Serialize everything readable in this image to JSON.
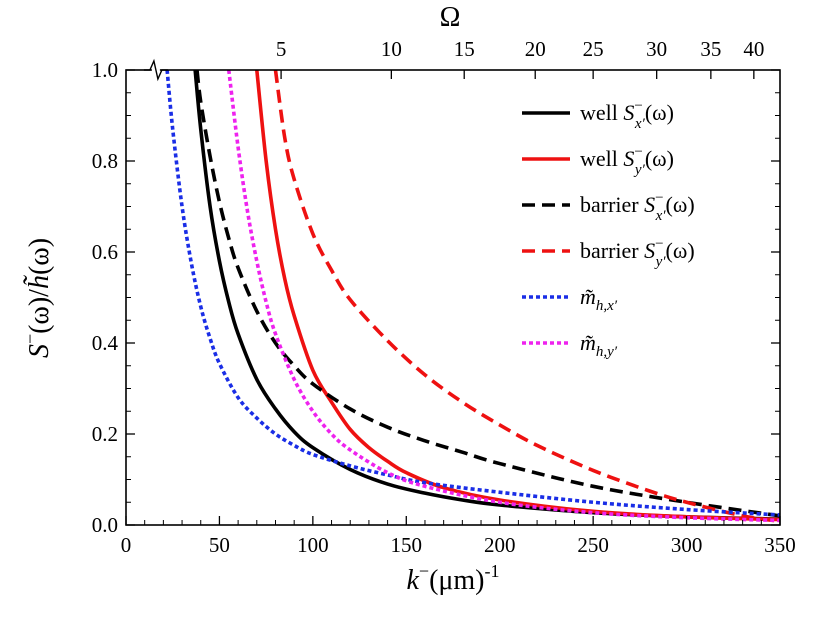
{
  "chart_data": {
    "type": "line",
    "title": "",
    "xlabel": "k⁻(μm)-1",
    "xlabel_parts": {
      "var": "k",
      "sup": "−",
      "unit": "(μm)",
      "unit_sup": "-1"
    },
    "ylabel": "S⁻(ω)/h̃(ω)",
    "ylabel_parts": {
      "var": "S",
      "sup": "−",
      "arg": "(ω)/",
      "var2": "h̃",
      "arg2": "(ω)"
    },
    "top_axis_label": "Ω",
    "xlim": [
      0,
      350
    ],
    "ylim": [
      0,
      1
    ],
    "x_ticks": [
      0,
      50,
      100,
      150,
      200,
      250,
      300,
      350
    ],
    "y_ticks": [
      0.0,
      0.2,
      0.4,
      0.6,
      0.8,
      1.0
    ],
    "y_tick_labels": [
      "0.0",
      "0.2",
      "0.4",
      "0.6",
      "0.8",
      "1.0"
    ],
    "top_ticks": [
      {
        "label": "5",
        "x": 83
      },
      {
        "label": "10",
        "x": 142
      },
      {
        "label": "15",
        "x": 181
      },
      {
        "label": "20",
        "x": 219
      },
      {
        "label": "25",
        "x": 250
      },
      {
        "label": "30",
        "x": 284
      },
      {
        "label": "35",
        "x": 313
      },
      {
        "label": "40",
        "x": 336
      }
    ],
    "axis_break_marker_x": 16,
    "series": [
      {
        "name": "well S⁻x'(ω)",
        "legend": {
          "pre": "well ",
          "var": "S",
          "sub": "x′",
          "sup": "−",
          "arg": "(ω)"
        },
        "color": "#000000",
        "dash": "solid",
        "x": [
          37,
          40,
          45,
          50,
          55,
          60,
          70,
          80,
          90,
          100,
          120,
          140,
          160,
          180,
          200,
          250,
          300,
          350
        ],
        "y": [
          1.0,
          0.87,
          0.7,
          0.58,
          0.49,
          0.42,
          0.32,
          0.255,
          0.205,
          0.17,
          0.122,
          0.09,
          0.07,
          0.055,
          0.044,
          0.027,
          0.018,
          0.013
        ]
      },
      {
        "name": "well S⁻y'(ω)",
        "legend": {
          "pre": "well ",
          "var": "S",
          "sub": "y′",
          "sup": "−",
          "arg": "(ω)"
        },
        "color": "#ee1111",
        "dash": "solid",
        "x": [
          70,
          75,
          80,
          85,
          90,
          100,
          110,
          120,
          130,
          140,
          150,
          170,
          200,
          250,
          300,
          350
        ],
        "y": [
          1.0,
          0.8,
          0.65,
          0.54,
          0.46,
          0.34,
          0.27,
          0.21,
          0.17,
          0.14,
          0.115,
          0.082,
          0.055,
          0.03,
          0.018,
          0.012
        ]
      },
      {
        "name": "barrier S⁻x'(ω)",
        "legend": {
          "pre": "barrier ",
          "var": "S",
          "sub": "x′",
          "sup": "−",
          "arg": "(ω)"
        },
        "color": "#000000",
        "dash": "dashed",
        "x": [
          38,
          40,
          45,
          50,
          55,
          60,
          70,
          80,
          90,
          100,
          120,
          140,
          160,
          180,
          200,
          250,
          300,
          350
        ],
        "y": [
          1.0,
          0.93,
          0.81,
          0.71,
          0.63,
          0.565,
          0.47,
          0.4,
          0.35,
          0.31,
          0.255,
          0.215,
          0.185,
          0.16,
          0.135,
          0.085,
          0.05,
          0.02
        ]
      },
      {
        "name": "barrier S⁻y'(ω)",
        "legend": {
          "pre": "barrier ",
          "var": "S",
          "sub": "y′",
          "sup": "−",
          "arg": "(ω)"
        },
        "color": "#ee1111",
        "dash": "dashed",
        "x": [
          80,
          85,
          90,
          100,
          110,
          120,
          140,
          160,
          180,
          200,
          220,
          250,
          280,
          300,
          330,
          350
        ],
        "y": [
          1.0,
          0.85,
          0.76,
          0.64,
          0.56,
          0.495,
          0.405,
          0.33,
          0.27,
          0.22,
          0.175,
          0.12,
          0.075,
          0.05,
          0.02,
          0.008
        ]
      },
      {
        "name": "m̃h,x'",
        "legend": {
          "var": "m̃",
          "sub": "h,x′"
        },
        "color": "#1a2ee6",
        "dash": "dotted",
        "x": [
          22,
          25,
          30,
          35,
          40,
          45,
          50,
          60,
          70,
          80,
          90,
          100,
          120,
          140,
          160,
          200,
          250,
          300,
          350
        ],
        "y": [
          1.0,
          0.87,
          0.7,
          0.575,
          0.48,
          0.41,
          0.355,
          0.28,
          0.235,
          0.2,
          0.175,
          0.155,
          0.13,
          0.11,
          0.093,
          0.072,
          0.05,
          0.034,
          0.022
        ]
      },
      {
        "name": "m̃h,y'",
        "legend": {
          "var": "m̃",
          "sub": "h,y′"
        },
        "color": "#ee22ee",
        "dash": "dotted",
        "x": [
          55,
          60,
          65,
          70,
          75,
          80,
          90,
          100,
          110,
          120,
          140,
          160,
          200,
          250,
          300,
          350
        ],
        "y": [
          1.0,
          0.83,
          0.69,
          0.58,
          0.49,
          0.42,
          0.32,
          0.25,
          0.2,
          0.165,
          0.115,
          0.085,
          0.05,
          0.027,
          0.016,
          0.01
        ]
      }
    ]
  }
}
